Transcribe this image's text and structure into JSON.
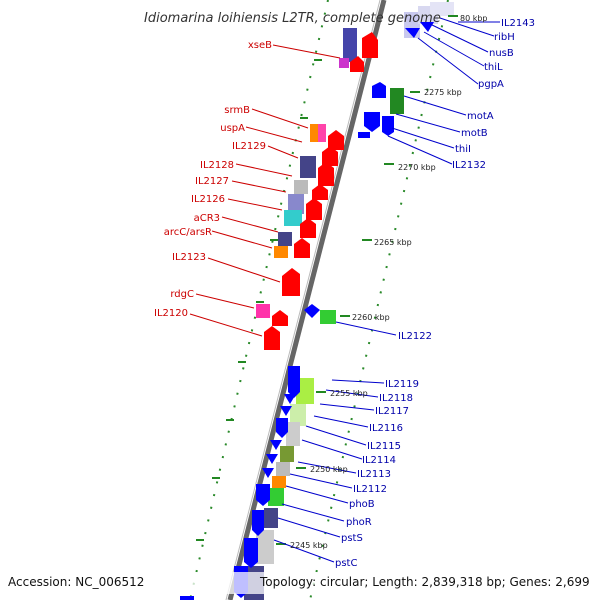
{
  "title": "Idiomarina loihiensis L2TR, complete genome",
  "footer": {
    "accession": "Accession: NC_006512",
    "topology": "Topology: circular; Length: 2,839,318 bp; Genes: 2,699"
  },
  "scale_labels": [
    "80 kbp",
    "2275 kbp",
    "2270 kbp",
    "2265 kbp",
    "2260 kbp",
    "2255 kbp",
    "2250 kbp",
    "2245 kbp"
  ],
  "left_genes": [
    "xseB",
    "srmB",
    "uspA",
    "IL2129",
    "IL2128",
    "IL2127",
    "IL2126",
    "aCR3",
    "arcC/arsR",
    "IL2123",
    "rdgC",
    "IL2120"
  ],
  "right_genes": [
    "IL2143",
    "ribH",
    "nusB",
    "thiL",
    "pgpA",
    "motA",
    "motB",
    "thiI",
    "IL2132",
    "IL2122",
    "IL2119",
    "IL2118",
    "IL2117",
    "IL2116",
    "IL2115",
    "IL2114",
    "IL2113",
    "IL2112",
    "phoB",
    "phoR",
    "pstS",
    "pstC"
  ],
  "colors": {
    "forward_gene": "#ff0000",
    "reverse_gene": "#0000ff",
    "axis": "#888888",
    "ticks": "#228822"
  }
}
